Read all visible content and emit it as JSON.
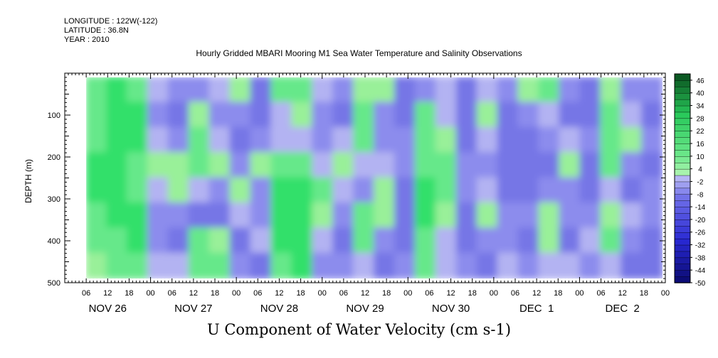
{
  "header": {
    "longitude": "LONGITUDE : 122W(-122)",
    "latitude": "LATITUDE : 36.8N",
    "year": "YEAR : 2010"
  },
  "chart_data": {
    "type": "heatmap",
    "title": "Hourly Gridded MBARI Mooring M1 Sea Water Temperature and Salinity Observations",
    "xlabel": "U Component of Water Velocity (cm s-1)",
    "ylabel": "DEPTH (m)",
    "x_start_hour": 0,
    "x_end_hour": 168,
    "data_start_hour": 6,
    "x_hour_tick_labels": [
      "06",
      "12",
      "18",
      "00",
      "06",
      "12",
      "18",
      "00",
      "06",
      "12",
      "18",
      "00",
      "06",
      "12",
      "18",
      "00",
      "06",
      "12",
      "18",
      "00",
      "06",
      "12",
      "18",
      "00",
      "06",
      "12",
      "18",
      "00"
    ],
    "x_day_labels": [
      "NOV 26",
      "NOV 27",
      "NOV 28",
      "NOV 29",
      "NOV 30",
      "DEC  1",
      "DEC  2"
    ],
    "ylim": [
      0,
      500
    ],
    "y_ticks": [
      100,
      200,
      300,
      400,
      500
    ],
    "data_depth_range": [
      10,
      490
    ],
    "colorbar": {
      "labels": [
        46,
        40,
        34,
        28,
        22,
        16,
        10,
        4,
        -2,
        -8,
        -14,
        -20,
        -26,
        -32,
        -38,
        -44,
        -50
      ],
      "vmin": -50,
      "vmax": 49,
      "step": 3
    },
    "colors": {
      "negative_light": "#b3b3f2",
      "negative_mid": "#8c8ced",
      "negative_dark": "#7676e6",
      "positive_light": "#99f099",
      "positive_mid": "#66e88a",
      "positive_dark": "#33e06a"
    },
    "columns": [
      {
        "hour": 6,
        "values": [
          8,
          12,
          10,
          14,
          16,
          12,
          6,
          4
        ]
      },
      {
        "hour": 12,
        "values": [
          14,
          18,
          20,
          16,
          14,
          18,
          12,
          8
        ]
      },
      {
        "hour": 18,
        "values": [
          10,
          16,
          18,
          12,
          10,
          14,
          16,
          12
        ]
      },
      {
        "hour": 24,
        "values": [
          -4,
          -6,
          -2,
          2,
          -4,
          -8,
          -6,
          -2
        ]
      },
      {
        "hour": 30,
        "values": [
          -8,
          -10,
          -6,
          4,
          2,
          -6,
          -10,
          -4
        ]
      },
      {
        "hour": 36,
        "values": [
          -6,
          4,
          8,
          6,
          -2,
          -10,
          6,
          12
        ]
      },
      {
        "hour": 42,
        "values": [
          -2,
          -6,
          -4,
          2,
          -6,
          -12,
          4,
          10
        ]
      },
      {
        "hour": 48,
        "values": [
          4,
          -8,
          -10,
          -6,
          2,
          -4,
          -10,
          -8
        ]
      },
      {
        "hour": 54,
        "values": [
          -10,
          -14,
          -6,
          2,
          -8,
          -6,
          -2,
          -10
        ]
      },
      {
        "hour": 60,
        "values": [
          8,
          -2,
          -4,
          6,
          14,
          16,
          18,
          10
        ]
      },
      {
        "hour": 66,
        "values": [
          6,
          4,
          -2,
          8,
          16,
          20,
          18,
          14
        ]
      },
      {
        "hour": 72,
        "values": [
          -4,
          -8,
          -6,
          -2,
          6,
          2,
          -4,
          -6
        ]
      },
      {
        "hour": 78,
        "values": [
          -8,
          -12,
          -4,
          4,
          -4,
          -8,
          -10,
          -8
        ]
      },
      {
        "hour": 84,
        "values": [
          4,
          8,
          12,
          -2,
          -6,
          6,
          8,
          -4
        ]
      },
      {
        "hour": 90,
        "values": [
          2,
          -6,
          -8,
          -4,
          4,
          2,
          -6,
          -10
        ]
      },
      {
        "hour": 96,
        "values": [
          -12,
          -10,
          -6,
          -8,
          -12,
          -14,
          -10,
          -6
        ]
      },
      {
        "hour": 102,
        "values": [
          -6,
          6,
          10,
          12,
          16,
          14,
          10,
          8
        ]
      },
      {
        "hour": 108,
        "values": [
          -2,
          -4,
          2,
          6,
          8,
          4,
          -4,
          -2
        ]
      },
      {
        "hour": 114,
        "values": [
          -10,
          -12,
          -14,
          -8,
          -6,
          -10,
          -12,
          -8
        ]
      },
      {
        "hour": 120,
        "values": [
          -4,
          2,
          -2,
          -8,
          -4,
          2,
          -6,
          -10
        ]
      },
      {
        "hour": 126,
        "values": [
          -8,
          -12,
          -14,
          -10,
          -12,
          -8,
          -6,
          -4
        ]
      },
      {
        "hour": 132,
        "values": [
          2,
          -6,
          -10,
          -14,
          -12,
          -8,
          -10,
          -6
        ]
      },
      {
        "hour": 138,
        "values": [
          10,
          -2,
          -8,
          -12,
          -6,
          4,
          2,
          -4
        ]
      },
      {
        "hour": 144,
        "values": [
          -6,
          -10,
          -4,
          2,
          -8,
          -6,
          -10,
          -4
        ]
      },
      {
        "hour": 150,
        "values": [
          -12,
          -14,
          -8,
          -10,
          -12,
          -6,
          -4,
          -8
        ]
      },
      {
        "hour": 156,
        "values": [
          4,
          8,
          12,
          6,
          -2,
          4,
          6,
          -2
        ]
      },
      {
        "hour": 162,
        "values": [
          -8,
          -4,
          2,
          -6,
          -10,
          -4,
          -8,
          -12
        ]
      },
      {
        "hour": 168,
        "values": [
          -6,
          -10,
          -8,
          -12,
          -6,
          -8,
          -10,
          -12
        ]
      }
    ]
  }
}
